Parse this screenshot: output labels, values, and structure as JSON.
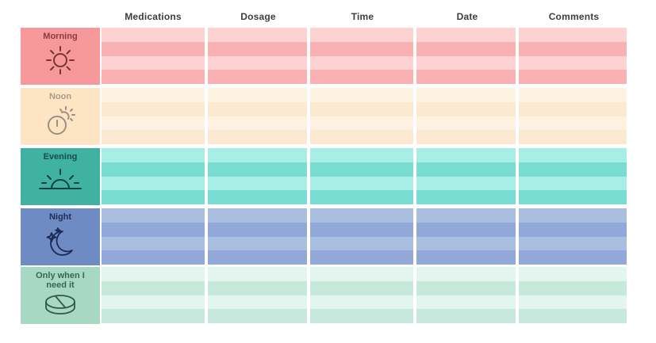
{
  "columns": [
    "Medications",
    "Dosage",
    "Time",
    "Date",
    "Comments"
  ],
  "rows": [
    {
      "key": "morning",
      "label": "Morning",
      "icon": "sun-icon",
      "label_bg": "#f7999b",
      "text_color": "#8a3c3c",
      "stripe_dark": "#f9b1b4",
      "stripe_light": "#fcd2d3"
    },
    {
      "key": "noon",
      "label": "Noon",
      "icon": "clock-sun-icon",
      "label_bg": "#fde4c3",
      "text_color": "#a89b8c",
      "stripe_dark": "#fce9d2",
      "stripe_light": "#fdf1e2"
    },
    {
      "key": "evening",
      "label": "Evening",
      "icon": "sunset-icon",
      "label_bg": "#3fb2a4",
      "text_color": "#1d4a46",
      "stripe_dark": "#79dcd2",
      "stripe_light": "#a8eee6"
    },
    {
      "key": "night",
      "label": "Night",
      "icon": "moon-stars-icon",
      "label_bg": "#6f8bc4",
      "text_color": "#1f2f57",
      "stripe_dark": "#91a8d9",
      "stripe_light": "#aabedf"
    },
    {
      "key": "as_needed",
      "label": "Only when I need it",
      "icon": "pill-icon",
      "label_bg": "#a6d8c4",
      "text_color": "#3c6357",
      "stripe_dark": "#c6e9dc",
      "stripe_light": "#e2f5ee"
    }
  ]
}
